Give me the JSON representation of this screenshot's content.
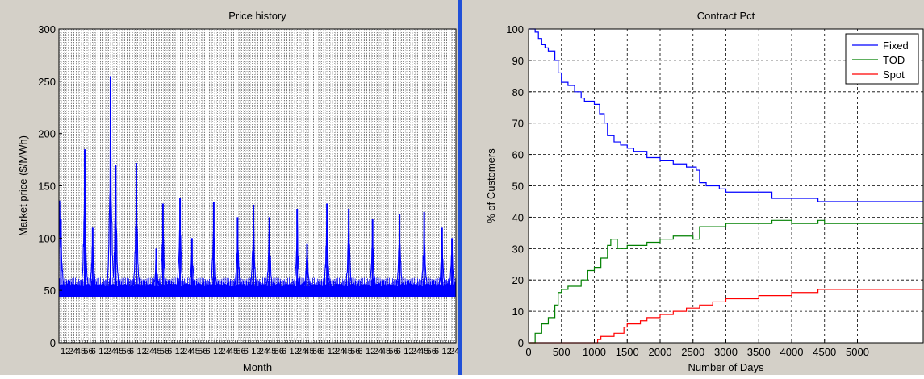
{
  "chart_data": [
    {
      "type": "line",
      "title": "Price history",
      "xlabel": "Month",
      "ylabel": "Market price ($/MWh)",
      "ylim": [
        0,
        300
      ],
      "yticks": [
        0,
        50,
        100,
        150,
        200,
        250,
        300
      ],
      "x_tick_labels_note": "dense overlapping month labels (unreadable)",
      "x_tick_labels_visible_fragment": "12456",
      "grid": true,
      "series_color": "#0000ff",
      "baseline_price": 52,
      "peaks": [
        {
          "pos": 0.005,
          "value": 118
        },
        {
          "pos": 0.065,
          "value": 185
        },
        {
          "pos": 0.085,
          "value": 110
        },
        {
          "pos": 0.13,
          "value": 255
        },
        {
          "pos": 0.143,
          "value": 170
        },
        {
          "pos": 0.195,
          "value": 172
        },
        {
          "pos": 0.245,
          "value": 90
        },
        {
          "pos": 0.262,
          "value": 133
        },
        {
          "pos": 0.305,
          "value": 138
        },
        {
          "pos": 0.335,
          "value": 100
        },
        {
          "pos": 0.39,
          "value": 135
        },
        {
          "pos": 0.45,
          "value": 120
        },
        {
          "pos": 0.49,
          "value": 132
        },
        {
          "pos": 0.53,
          "value": 120
        },
        {
          "pos": 0.6,
          "value": 128
        },
        {
          "pos": 0.625,
          "value": 95
        },
        {
          "pos": 0.675,
          "value": 133
        },
        {
          "pos": 0.73,
          "value": 128
        },
        {
          "pos": 0.79,
          "value": 118
        },
        {
          "pos": 0.858,
          "value": 123
        },
        {
          "pos": 0.92,
          "value": 125
        },
        {
          "pos": 0.965,
          "value": 110
        },
        {
          "pos": 0.99,
          "value": 100
        }
      ]
    },
    {
      "type": "line",
      "title": "Contract Pct",
      "xlabel": "Number of Days",
      "ylabel": "% of Customers",
      "xlim": [
        0,
        6000
      ],
      "ylim": [
        0,
        100
      ],
      "xticks": [
        0,
        500,
        1000,
        1500,
        2000,
        2500,
        3000,
        3500,
        4000,
        4500,
        5000
      ],
      "yticks": [
        0,
        10,
        20,
        30,
        40,
        50,
        60,
        70,
        80,
        90,
        100
      ],
      "grid": true,
      "legend_position": "top-right",
      "series": [
        {
          "name": "Fixed",
          "color": "#0000ff",
          "x": [
            0,
            100,
            150,
            200,
            250,
            300,
            400,
            450,
            500,
            600,
            700,
            800,
            850,
            900,
            1000,
            1080,
            1150,
            1200,
            1300,
            1400,
            1500,
            1600,
            1800,
            2000,
            2200,
            2400,
            2550,
            2600,
            2700,
            2900,
            3000,
            3500,
            3700,
            3900,
            4400,
            5000,
            6000
          ],
          "y": [
            100,
            99,
            97,
            95,
            94,
            93,
            90,
            86,
            83,
            82,
            80,
            78,
            77,
            77,
            76,
            73,
            70,
            66,
            64,
            63,
            62,
            61,
            59,
            58,
            57,
            56,
            55,
            51,
            50,
            49,
            48,
            48,
            46,
            46,
            45,
            45,
            45
          ]
        },
        {
          "name": "TOD",
          "color": "#008000",
          "x": [
            0,
            80,
            100,
            200,
            300,
            400,
            450,
            500,
            600,
            800,
            900,
            1000,
            1100,
            1200,
            1250,
            1350,
            1400,
            1500,
            1600,
            1800,
            2000,
            2200,
            2500,
            2600,
            2900,
            3000,
            3500,
            3700,
            4000,
            4400,
            4500,
            5000,
            6000
          ],
          "y": [
            0,
            0,
            3,
            6,
            8,
            12,
            16,
            17,
            18,
            20,
            23,
            24,
            27,
            31,
            33,
            30,
            30,
            31,
            31,
            32,
            33,
            34,
            33,
            37,
            37,
            38,
            38,
            39,
            38,
            39,
            38,
            38,
            38
          ]
        },
        {
          "name": "Spot",
          "color": "#ff0000",
          "x": [
            0,
            1000,
            1050,
            1100,
            1300,
            1450,
            1500,
            1700,
            1800,
            2000,
            2200,
            2400,
            2600,
            2800,
            3000,
            3500,
            4000,
            4400,
            5000,
            6000
          ],
          "y": [
            0,
            0,
            1,
            2,
            3,
            5,
            6,
            7,
            8,
            9,
            10,
            11,
            12,
            13,
            14,
            15,
            16,
            17,
            17,
            17
          ]
        }
      ]
    }
  ]
}
